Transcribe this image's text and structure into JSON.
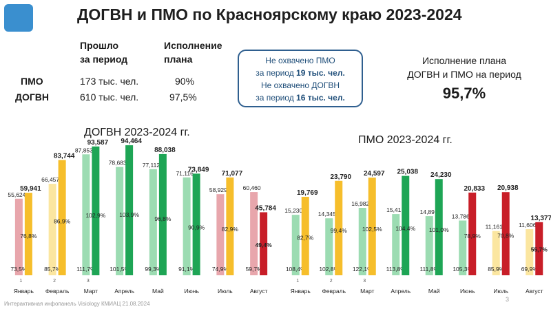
{
  "header": {
    "title": "ДОГВН и ПМО по Красноярскому краю 2023-2024"
  },
  "summary": {
    "col_passed": "Прошло за период",
    "col_passed_lines": [
      "Прошло",
      "за период"
    ],
    "col_plan_lines": [
      "Исполнение",
      "плана"
    ],
    "rows": [
      {
        "label": "ПМО",
        "passed": "173 тыс. чел.",
        "plan": "90%"
      },
      {
        "label": "ДОГВН",
        "passed": "610 тыс. чел.",
        "plan": "97,5%"
      }
    ]
  },
  "notice": {
    "line1": "Не охвачено ПМО",
    "line2_prefix": "за период ",
    "line2_bold": "19 тыс. чел.",
    "line3": "Не охвачено ДОГВН",
    "line4_prefix": "за период ",
    "line4_bold": "16 тыс. чел."
  },
  "total": {
    "label_line1": "Исполнение плана",
    "label_line2": "ДОГВН и ПМО на период",
    "value": "95,7%"
  },
  "footer": {
    "text": "Интерактивная инфопанель Visiology КМИАЦ 21.08.2024",
    "page": "3"
  },
  "chart_data": [
    {
      "type": "bar",
      "title": "ДОГВН 2023-2024 гг.",
      "categories": [
        "Январь",
        "Февраль",
        "Март",
        "Апрель",
        "Май",
        "Июнь",
        "Июль",
        "Август"
      ],
      "category_numbers": [
        "1",
        "2",
        "3",
        "",
        "",
        "",
        "",
        ""
      ],
      "series": [
        {
          "name": "",
          "values": [
            55624,
            66457,
            87853,
            78683,
            77112,
            71116,
            58929,
            60460
          ],
          "labels": [
            "55,624",
            "66,457",
            "87,853",
            "78,683",
            "77,112",
            "71,116",
            "58,929",
            "60,460"
          ],
          "pct": [
            "73,5%",
            "85,7%",
            "111,7%",
            "101,5%",
            "99,3%",
            "91,1%",
            "74,9%",
            "59,7%"
          ]
        },
        {
          "name": "",
          "values": [
            59941,
            83744,
            93587,
            94464,
            88038,
            73849,
            71077,
            45784
          ],
          "labels": [
            "59,941",
            "83,744",
            "93,587",
            "94,464",
            "88,038",
            "73,849",
            "71,077",
            "45,784"
          ],
          "pct": [
            "76,8%",
            "86,9%",
            "102,9%",
            "103,9%",
            "96,8%",
            "90,9%",
            "82,9%",
            "49,4%"
          ]
        }
      ],
      "colors_2023": [
        "#e8a6ac",
        "#fbe6a0",
        "#9cdcb2",
        "#9cdcb2",
        "#9cdcb2",
        "#9cdcb2",
        "#e8a6ac",
        "#e8a6ac"
      ],
      "colors_2024": [
        "#f6be2b",
        "#f6be2b",
        "#1ea555",
        "#1ea555",
        "#1ea555",
        "#1ea555",
        "#f6be2b",
        "#c81e28"
      ],
      "ylim": [
        0,
        100000
      ]
    },
    {
      "type": "bar",
      "title": "ПМО 2023-2024 гг.",
      "categories": [
        "Январь",
        "Февраль",
        "Март",
        "Апрель",
        "Май",
        "Июнь",
        "Июль",
        "Август"
      ],
      "category_numbers": [
        "1",
        "2",
        "3",
        "",
        "",
        "",
        "",
        ""
      ],
      "series": [
        {
          "name": "",
          "values": [
            15230,
            14345,
            16982,
            15410,
            14890,
            13786,
            11161,
            11606
          ],
          "labels": [
            "15,230",
            "14,345",
            "16,982",
            "15,41",
            "14,89",
            "13,786",
            "11,161",
            "11,606"
          ],
          "pct": [
            "108,4%",
            "102,8%",
            "122,1%",
            "113,8%",
            "111,8%",
            "105,3%",
            "85,9%",
            "69,9%"
          ]
        },
        {
          "name": "",
          "values": [
            19769,
            23790,
            24597,
            25038,
            24230,
            20833,
            20938,
            13377
          ],
          "labels": [
            "19,769",
            "23,790",
            "24,597",
            "25,038",
            "24,230",
            "20,833",
            "20,938",
            "13,377"
          ],
          "pct": [
            "82,7%",
            "99,4%",
            "102,5%",
            "104,4%",
            "101,0%",
            "78,9%",
            "70,8%",
            "55,7%"
          ]
        }
      ],
      "colors_2023": [
        "#9cdcb2",
        "#9cdcb2",
        "#9cdcb2",
        "#9cdcb2",
        "#9cdcb2",
        "#9cdcb2",
        "#fbe6a0",
        "#fbe6a0"
      ],
      "colors_2024": [
        "#f6be2b",
        "#f6be2b",
        "#f6be2b",
        "#1ea555",
        "#1ea555",
        "#c81e28",
        "#c81e28",
        "#c81e28"
      ],
      "ylim": [
        0,
        26000
      ]
    }
  ]
}
